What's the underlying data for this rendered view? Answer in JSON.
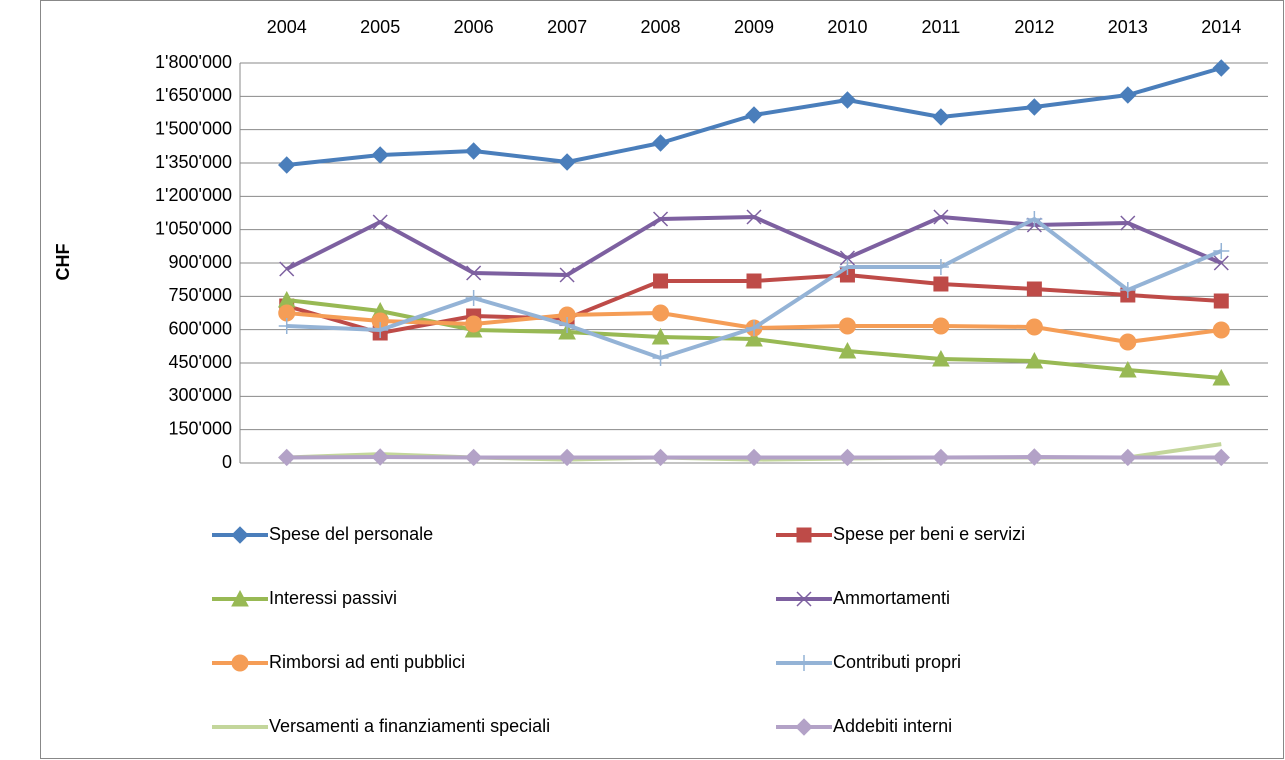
{
  "chart_data": {
    "type": "line",
    "y_axis_label": "CHF",
    "categories": [
      "2004",
      "2005",
      "2006",
      "2007",
      "2008",
      "2009",
      "2010",
      "2011",
      "2012",
      "2013",
      "2014"
    ],
    "ylim": [
      0,
      1800000
    ],
    "yticks": [
      0,
      {
        "value": 150000,
        "label": "150'000"
      },
      {
        "value": 300000,
        "label": "300'000"
      },
      {
        "value": 450000,
        "label": "450'000"
      },
      {
        "value": 600000,
        "label": "600'000"
      },
      {
        "value": 750000,
        "label": "750'000"
      },
      {
        "value": 900000,
        "label": "900'000"
      },
      {
        "value": 1050000,
        "label": "1'050'000"
      },
      {
        "value": 1200000,
        "label": "1'200'000"
      },
      {
        "value": 1350000,
        "label": "1'350'000"
      },
      {
        "value": 1500000,
        "label": "1'500'000"
      },
      {
        "value": 1650000,
        "label": "1'650'000"
      },
      {
        "value": 1800000,
        "label": "1'800'000"
      }
    ],
    "grid": true,
    "legend": "bottom",
    "series": [
      {
        "name": "Spese del personale",
        "color": "#4a7ebb",
        "marker": "diamond",
        "values": [
          1341000,
          1386000,
          1404000,
          1354500,
          1440000,
          1566000,
          1633500,
          1557000,
          1602000,
          1656000,
          1777500
        ]
      },
      {
        "name": "Spese per beni e servizi",
        "color": "#be4b48",
        "marker": "square",
        "values": [
          706500,
          585000,
          661500,
          650000,
          819000,
          819000,
          846000,
          805500,
          783000,
          756000,
          729000
        ]
      },
      {
        "name": "Interessi passivi",
        "color": "#98b954",
        "marker": "triangle",
        "values": [
          733500,
          684000,
          598500,
          589500,
          567000,
          558000,
          504000,
          468000,
          459000,
          418500,
          382500
        ]
      },
      {
        "name": "Ammortamenti",
        "color": "#7d60a0",
        "marker": "x",
        "values": [
          873000,
          1084500,
          855000,
          846000,
          1098000,
          1107000,
          922500,
          1107000,
          1071000,
          1080000,
          900000
        ]
      },
      {
        "name": "Rimborsi ad enti pubblici",
        "color": "#f59d56",
        "marker": "circle",
        "values": [
          675000,
          639000,
          625500,
          666000,
          675000,
          607500,
          616500,
          616500,
          612000,
          544500,
          598500
        ]
      },
      {
        "name": "Contributi propri",
        "color": "#94b3d6",
        "marker": "plus",
        "values": [
          616500,
          598500,
          742500,
          621000,
          472500,
          607500,
          882000,
          882000,
          1098000,
          778500,
          954000
        ]
      },
      {
        "name": "Versamenti a finanziamenti speciali",
        "color": "#c3d69b",
        "marker": "none",
        "values": [
          25000,
          40000,
          25000,
          15000,
          25000,
          15000,
          20000,
          25000,
          25000,
          25000,
          85000
        ]
      },
      {
        "name": "Addebiti interni",
        "color": "#b3a2c7",
        "marker": "diamond",
        "values": [
          25000,
          27000,
          25000,
          25000,
          25000,
          25000,
          25000,
          25000,
          27000,
          25000,
          25000
        ]
      }
    ]
  }
}
